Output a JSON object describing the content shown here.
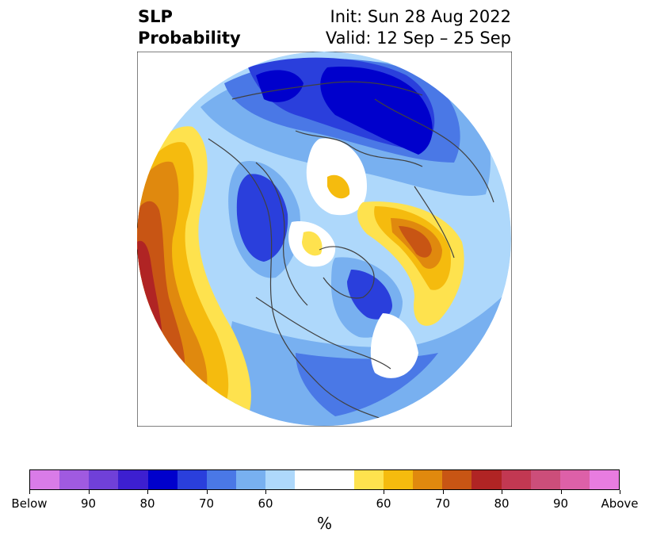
{
  "title": {
    "left_line1": "SLP",
    "left_line2": "Probability",
    "right_line1": "Init: Sun 28 Aug 2022",
    "right_line2": "Valid: 12 Sep – 25 Sep"
  },
  "colorbar": {
    "unit": "%",
    "colors": [
      "#d97be8",
      "#a05ae0",
      "#7040d8",
      "#3d1fd0",
      "#0000cc",
      "#2a3fdc",
      "#4a78e6",
      "#78b0f0",
      "#aed8fb",
      "#ffffff",
      "#ffffff",
      "#fee24e",
      "#f5bb0e",
      "#e0890e",
      "#c85514",
      "#b02424",
      "#c23852",
      "#cc4e7a",
      "#dd60a8",
      "#e87ce0"
    ],
    "labels": [
      "Below",
      "90",
      "80",
      "70",
      "60",
      "60",
      "70",
      "80",
      "90",
      "Above"
    ]
  },
  "map": {
    "colors": {
      "ocean": "#ffffff",
      "coast": "#404040"
    }
  }
}
